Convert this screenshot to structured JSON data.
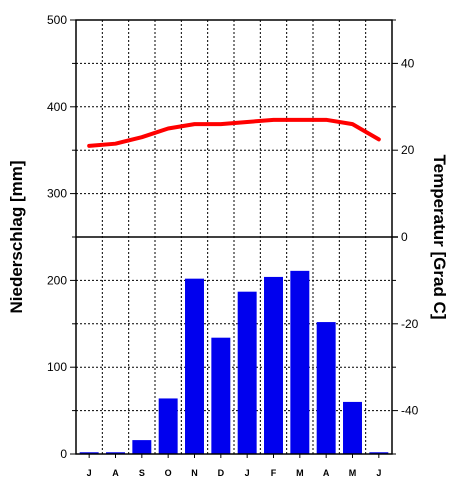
{
  "chart_data": {
    "type": "bar",
    "categories": [
      "J",
      "A",
      "S",
      "O",
      "N",
      "D",
      "J",
      "F",
      "M",
      "A",
      "M",
      "J"
    ],
    "series": [
      {
        "type": "bar",
        "axis": "left",
        "color": "#0000ee",
        "values": [
          2,
          2,
          16,
          64,
          202,
          134,
          187,
          204,
          211,
          152,
          60,
          2
        ]
      },
      {
        "type": "line",
        "axis": "right",
        "color": "#ff0000",
        "values": [
          21,
          21.5,
          23,
          25,
          26,
          26,
          26.5,
          27,
          27,
          27,
          26,
          22.5
        ]
      }
    ],
    "ylabel": "Niederschlag [mm]",
    "ylabel_right": "Temperatur [Grad C]",
    "ylim": [
      0,
      500
    ],
    "ylim_right": [
      -50,
      50
    ],
    "yticks": [
      0,
      100,
      200,
      300,
      400,
      500
    ],
    "yticks_right": [
      40,
      20,
      0,
      -20,
      -40
    ],
    "grid": true,
    "legend": "none"
  }
}
